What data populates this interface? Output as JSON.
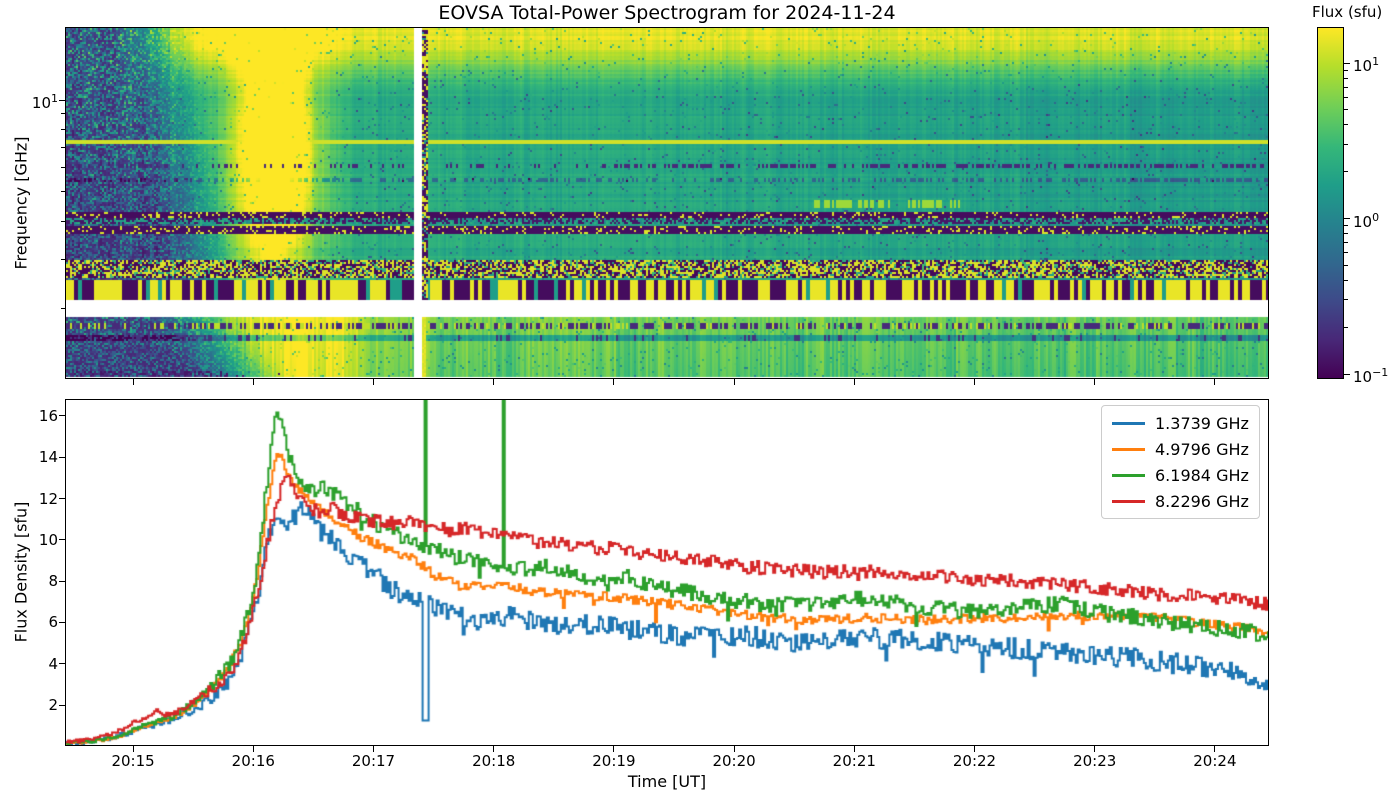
{
  "title": "EOVSA Total-Power Spectrogram for 2024-11-24",
  "chart_data": [
    {
      "type": "heatmap",
      "title": "EOVSA Total-Power Spectrogram for 2024-11-24",
      "ylabel": "Frequency [GHz]",
      "ytick_label": [
        "10",
        "1"
      ],
      "x_start_ut": "20:14:27",
      "x_end_ut": "20:24:27",
      "freq_range_ghz": [
        1.2,
        17.2
      ],
      "freq_scale": "log",
      "freq_gap_ghz": [
        1.95,
        2.2
      ],
      "colormap": "viridis",
      "colormap_stops": [
        [
          0.0,
          "#440154"
        ],
        [
          0.11,
          "#482878"
        ],
        [
          0.22,
          "#3e4a89"
        ],
        [
          0.33,
          "#31688e"
        ],
        [
          0.44,
          "#26828e"
        ],
        [
          0.55,
          "#1f9e89"
        ],
        [
          0.66,
          "#35b779"
        ],
        [
          0.77,
          "#6ece58"
        ],
        [
          0.89,
          "#b5de2b"
        ],
        [
          1.0,
          "#fde725"
        ]
      ],
      "colorbar": {
        "label": "Flux (sfu)",
        "tick_labels": [
          [
            "10",
            "1"
          ],
          [
            "10",
            "0"
          ],
          [
            "10",
            "−1"
          ]
        ]
      },
      "flux_range_sfu": [
        0.09,
        16.8
      ],
      "burst_peak_ut": "20:16:11",
      "data_gap_ut": "20:17:25",
      "render": {
        "yellow_line_fr": 0.419,
        "dark_dash_fr": 0.505,
        "teal_dash_fr": 0.558,
        "patch_fr": [
          0.632,
          0.66
        ],
        "patch_t": [
          20.65,
          21.9
        ],
        "rfi1": [
          0.672,
          0.7
        ],
        "rfi1b": [
          0.7,
          0.716
        ],
        "rfi2": [
          0.726,
          0.754
        ],
        "speckle": [
          0.853,
          0.92
        ],
        "barcode": [
          0.925,
          1.0
        ],
        "burst": {
          "t": 16.18,
          "sigma": 0.3,
          "fr_center": 0.45,
          "fr_sigma": 0.33,
          "amp": 0.55
        },
        "low_burst": {
          "t": 16.4,
          "sigma": 0.55,
          "amp": 0.25
        },
        "gap_x": [
          348,
          356
        ]
      }
    },
    {
      "type": "line",
      "xlabel": "Time [UT]",
      "ylabel": "Flux Density [sfu]",
      "ylim": [
        0,
        16.8
      ],
      "x_start_ut": "20:14:27",
      "x_end_ut": "20:24:27",
      "xticks": [
        "20:15",
        "20:16",
        "20:17",
        "20:18",
        "20:19",
        "20:20",
        "20:21",
        "20:22",
        "20:23",
        "20:24"
      ],
      "yticks": [
        2,
        4,
        6,
        8,
        10,
        12,
        14,
        16
      ],
      "legend_position": "upper right",
      "series": [
        {
          "name": "1.3739 GHz",
          "color": "#1f77b4",
          "noise": 0.5,
          "dip_chance": 0.022,
          "dip": 1.6,
          "points": [
            [
              14.45,
              0.15
            ],
            [
              14.6,
              0.2
            ],
            [
              14.75,
              0.35
            ],
            [
              14.9,
              0.55
            ],
            [
              15.05,
              0.85
            ],
            [
              15.2,
              1.05
            ],
            [
              15.35,
              1.35
            ],
            [
              15.5,
              1.8
            ],
            [
              15.65,
              2.4
            ],
            [
              15.8,
              3.2
            ],
            [
              15.9,
              4.6
            ],
            [
              15.98,
              6.0
            ],
            [
              16.04,
              7.6
            ],
            [
              16.1,
              9.6
            ],
            [
              16.17,
              10.9
            ],
            [
              16.23,
              10.4
            ],
            [
              16.3,
              10.9
            ],
            [
              16.4,
              11.5
            ],
            [
              16.48,
              11.0
            ],
            [
              16.58,
              10.3
            ],
            [
              16.7,
              9.7
            ],
            [
              16.82,
              9.2
            ],
            [
              16.95,
              8.5
            ],
            [
              17.1,
              7.9
            ],
            [
              17.25,
              7.1
            ],
            [
              17.4,
              6.9
            ],
            [
              17.55,
              6.6
            ],
            [
              17.75,
              6.2
            ],
            [
              17.95,
              6.1
            ],
            [
              18.15,
              6.3
            ],
            [
              18.4,
              5.9
            ],
            [
              18.65,
              6.0
            ],
            [
              18.9,
              5.8
            ],
            [
              19.2,
              5.6
            ],
            [
              19.5,
              5.4
            ],
            [
              19.8,
              5.3
            ],
            [
              20.1,
              5.4
            ],
            [
              20.4,
              5.0
            ],
            [
              20.7,
              5.1
            ],
            [
              21.0,
              5.3
            ],
            [
              21.3,
              5.2
            ],
            [
              21.6,
              5.1
            ],
            [
              21.9,
              5.0
            ],
            [
              22.2,
              4.8
            ],
            [
              22.5,
              4.7
            ],
            [
              22.8,
              4.5
            ],
            [
              23.1,
              4.4
            ],
            [
              23.4,
              4.2
            ],
            [
              23.7,
              4.0
            ],
            [
              24.0,
              3.8
            ],
            [
              24.2,
              3.5
            ],
            [
              24.35,
              3.1
            ],
            [
              24.45,
              3.1
            ]
          ]
        },
        {
          "name": "4.9796 GHz",
          "color": "#ff7f0e",
          "noise": 0.22,
          "dip_chance": 0.01,
          "dip": 0.8,
          "points": [
            [
              14.45,
              0.12
            ],
            [
              14.6,
              0.18
            ],
            [
              14.75,
              0.3
            ],
            [
              14.9,
              0.5
            ],
            [
              15.05,
              0.9
            ],
            [
              15.2,
              1.15
            ],
            [
              15.35,
              1.45
            ],
            [
              15.5,
              2.0
            ],
            [
              15.65,
              2.8
            ],
            [
              15.8,
              3.9
            ],
            [
              15.9,
              5.2
            ],
            [
              15.98,
              6.8
            ],
            [
              16.04,
              8.8
            ],
            [
              16.1,
              11.2
            ],
            [
              16.16,
              13.6
            ],
            [
              16.2,
              14.2
            ],
            [
              16.26,
              13.5
            ],
            [
              16.33,
              12.7
            ],
            [
              16.42,
              12.1
            ],
            [
              16.52,
              11.6
            ],
            [
              16.64,
              11.1
            ],
            [
              16.76,
              10.6
            ],
            [
              16.9,
              10.1
            ],
            [
              17.05,
              9.7
            ],
            [
              17.2,
              9.3
            ],
            [
              17.35,
              9.0
            ],
            [
              17.5,
              8.3
            ],
            [
              17.7,
              7.8
            ],
            [
              17.9,
              7.7
            ],
            [
              18.1,
              7.8
            ],
            [
              18.3,
              7.5
            ],
            [
              18.55,
              7.4
            ],
            [
              18.8,
              7.3
            ],
            [
              19.05,
              7.2
            ],
            [
              19.3,
              7.0
            ],
            [
              19.6,
              6.8
            ],
            [
              19.9,
              6.5
            ],
            [
              20.2,
              6.3
            ],
            [
              20.55,
              6.1
            ],
            [
              20.9,
              6.2
            ],
            [
              21.25,
              6.2
            ],
            [
              21.6,
              6.1
            ],
            [
              21.95,
              6.2
            ],
            [
              22.3,
              6.2
            ],
            [
              22.65,
              6.3
            ],
            [
              23.0,
              6.3
            ],
            [
              23.35,
              6.4
            ],
            [
              23.7,
              6.1
            ],
            [
              24.0,
              5.9
            ],
            [
              24.25,
              5.7
            ],
            [
              24.45,
              5.5
            ]
          ]
        },
        {
          "name": "6.1984 GHz",
          "color": "#2ca02c",
          "noise": 0.38,
          "dip_chance": 0.025,
          "dip": 1.2,
          "points": [
            [
              14.45,
              0.15
            ],
            [
              14.6,
              0.22
            ],
            [
              14.75,
              0.35
            ],
            [
              14.9,
              0.55
            ],
            [
              15.05,
              0.95
            ],
            [
              15.2,
              1.2
            ],
            [
              15.35,
              1.5
            ],
            [
              15.5,
              2.1
            ],
            [
              15.65,
              2.9
            ],
            [
              15.8,
              4.0
            ],
            [
              15.9,
              5.4
            ],
            [
              15.98,
              7.0
            ],
            [
              16.04,
              9.2
            ],
            [
              16.1,
              12.4
            ],
            [
              16.15,
              15.2
            ],
            [
              16.18,
              16.2
            ],
            [
              16.23,
              15.4
            ],
            [
              16.3,
              13.8
            ],
            [
              16.38,
              12.7
            ],
            [
              16.48,
              12.4
            ],
            [
              16.58,
              12.6
            ],
            [
              16.7,
              12.1
            ],
            [
              16.82,
              11.6
            ],
            [
              16.95,
              11.0
            ],
            [
              17.1,
              10.5
            ],
            [
              17.25,
              10.1
            ],
            [
              17.42,
              9.7
            ],
            [
              17.6,
              9.3
            ],
            [
              17.8,
              9.0
            ],
            [
              18.0,
              8.8
            ],
            [
              18.2,
              8.6
            ],
            [
              18.4,
              8.7
            ],
            [
              18.62,
              8.4
            ],
            [
              18.85,
              8.1
            ],
            [
              19.08,
              8.2
            ],
            [
              19.35,
              7.8
            ],
            [
              19.65,
              7.4
            ],
            [
              19.95,
              7.1
            ],
            [
              20.25,
              6.9
            ],
            [
              20.6,
              6.8
            ],
            [
              20.95,
              7.2
            ],
            [
              21.3,
              7.0
            ],
            [
              21.65,
              6.7
            ],
            [
              22.0,
              6.5
            ],
            [
              22.35,
              6.7
            ],
            [
              22.7,
              6.9
            ],
            [
              23.05,
              6.5
            ],
            [
              23.4,
              6.2
            ],
            [
              23.75,
              5.9
            ],
            [
              24.05,
              5.7
            ],
            [
              24.45,
              5.4
            ]
          ]
        },
        {
          "name": "8.2296 GHz",
          "color": "#d62728",
          "noise": 0.33,
          "dip_chance": 0.008,
          "dip": 0.7,
          "points": [
            [
              14.45,
              0.2
            ],
            [
              14.6,
              0.3
            ],
            [
              14.75,
              0.5
            ],
            [
              14.9,
              0.8
            ],
            [
              15.05,
              1.3
            ],
            [
              15.18,
              1.7
            ],
            [
              15.3,
              1.5
            ],
            [
              15.45,
              2.0
            ],
            [
              15.6,
              2.6
            ],
            [
              15.75,
              3.2
            ],
            [
              15.88,
              4.3
            ],
            [
              15.98,
              6.2
            ],
            [
              16.06,
              8.2
            ],
            [
              16.13,
              10.4
            ],
            [
              16.2,
              12.1
            ],
            [
              16.27,
              13.0
            ],
            [
              16.34,
              12.3
            ],
            [
              16.44,
              11.6
            ],
            [
              16.54,
              11.4
            ],
            [
              16.64,
              11.6
            ],
            [
              16.76,
              11.2
            ],
            [
              16.9,
              11.0
            ],
            [
              17.05,
              10.9
            ],
            [
              17.2,
              10.8
            ],
            [
              17.35,
              10.9
            ],
            [
              17.5,
              10.6
            ],
            [
              17.65,
              10.4
            ],
            [
              17.8,
              10.6
            ],
            [
              17.95,
              10.3
            ],
            [
              18.15,
              10.1
            ],
            [
              18.35,
              9.9
            ],
            [
              18.55,
              9.8
            ],
            [
              18.75,
              9.6
            ],
            [
              18.95,
              9.6
            ],
            [
              19.2,
              9.4
            ],
            [
              19.5,
              9.2
            ],
            [
              19.8,
              9.0
            ],
            [
              20.1,
              8.7
            ],
            [
              20.4,
              8.6
            ],
            [
              20.7,
              8.4
            ],
            [
              21.0,
              8.5
            ],
            [
              21.35,
              8.4
            ],
            [
              21.7,
              8.2
            ],
            [
              22.05,
              8.1
            ],
            [
              22.4,
              8.0
            ],
            [
              22.75,
              7.8
            ],
            [
              23.1,
              7.6
            ],
            [
              23.45,
              7.4
            ],
            [
              23.8,
              7.3
            ],
            [
              24.1,
              7.2
            ],
            [
              24.45,
              6.9
            ]
          ]
        }
      ],
      "artifacts": [
        {
          "series": 0,
          "t0": 17.408,
          "t1": 17.452,
          "value": 1.25
        },
        {
          "series": 2,
          "t0": 17.418,
          "t1": 17.436,
          "value": 16.75
        },
        {
          "series": 2,
          "t0": 18.072,
          "t1": 18.09,
          "value": 16.75
        }
      ]
    }
  ]
}
